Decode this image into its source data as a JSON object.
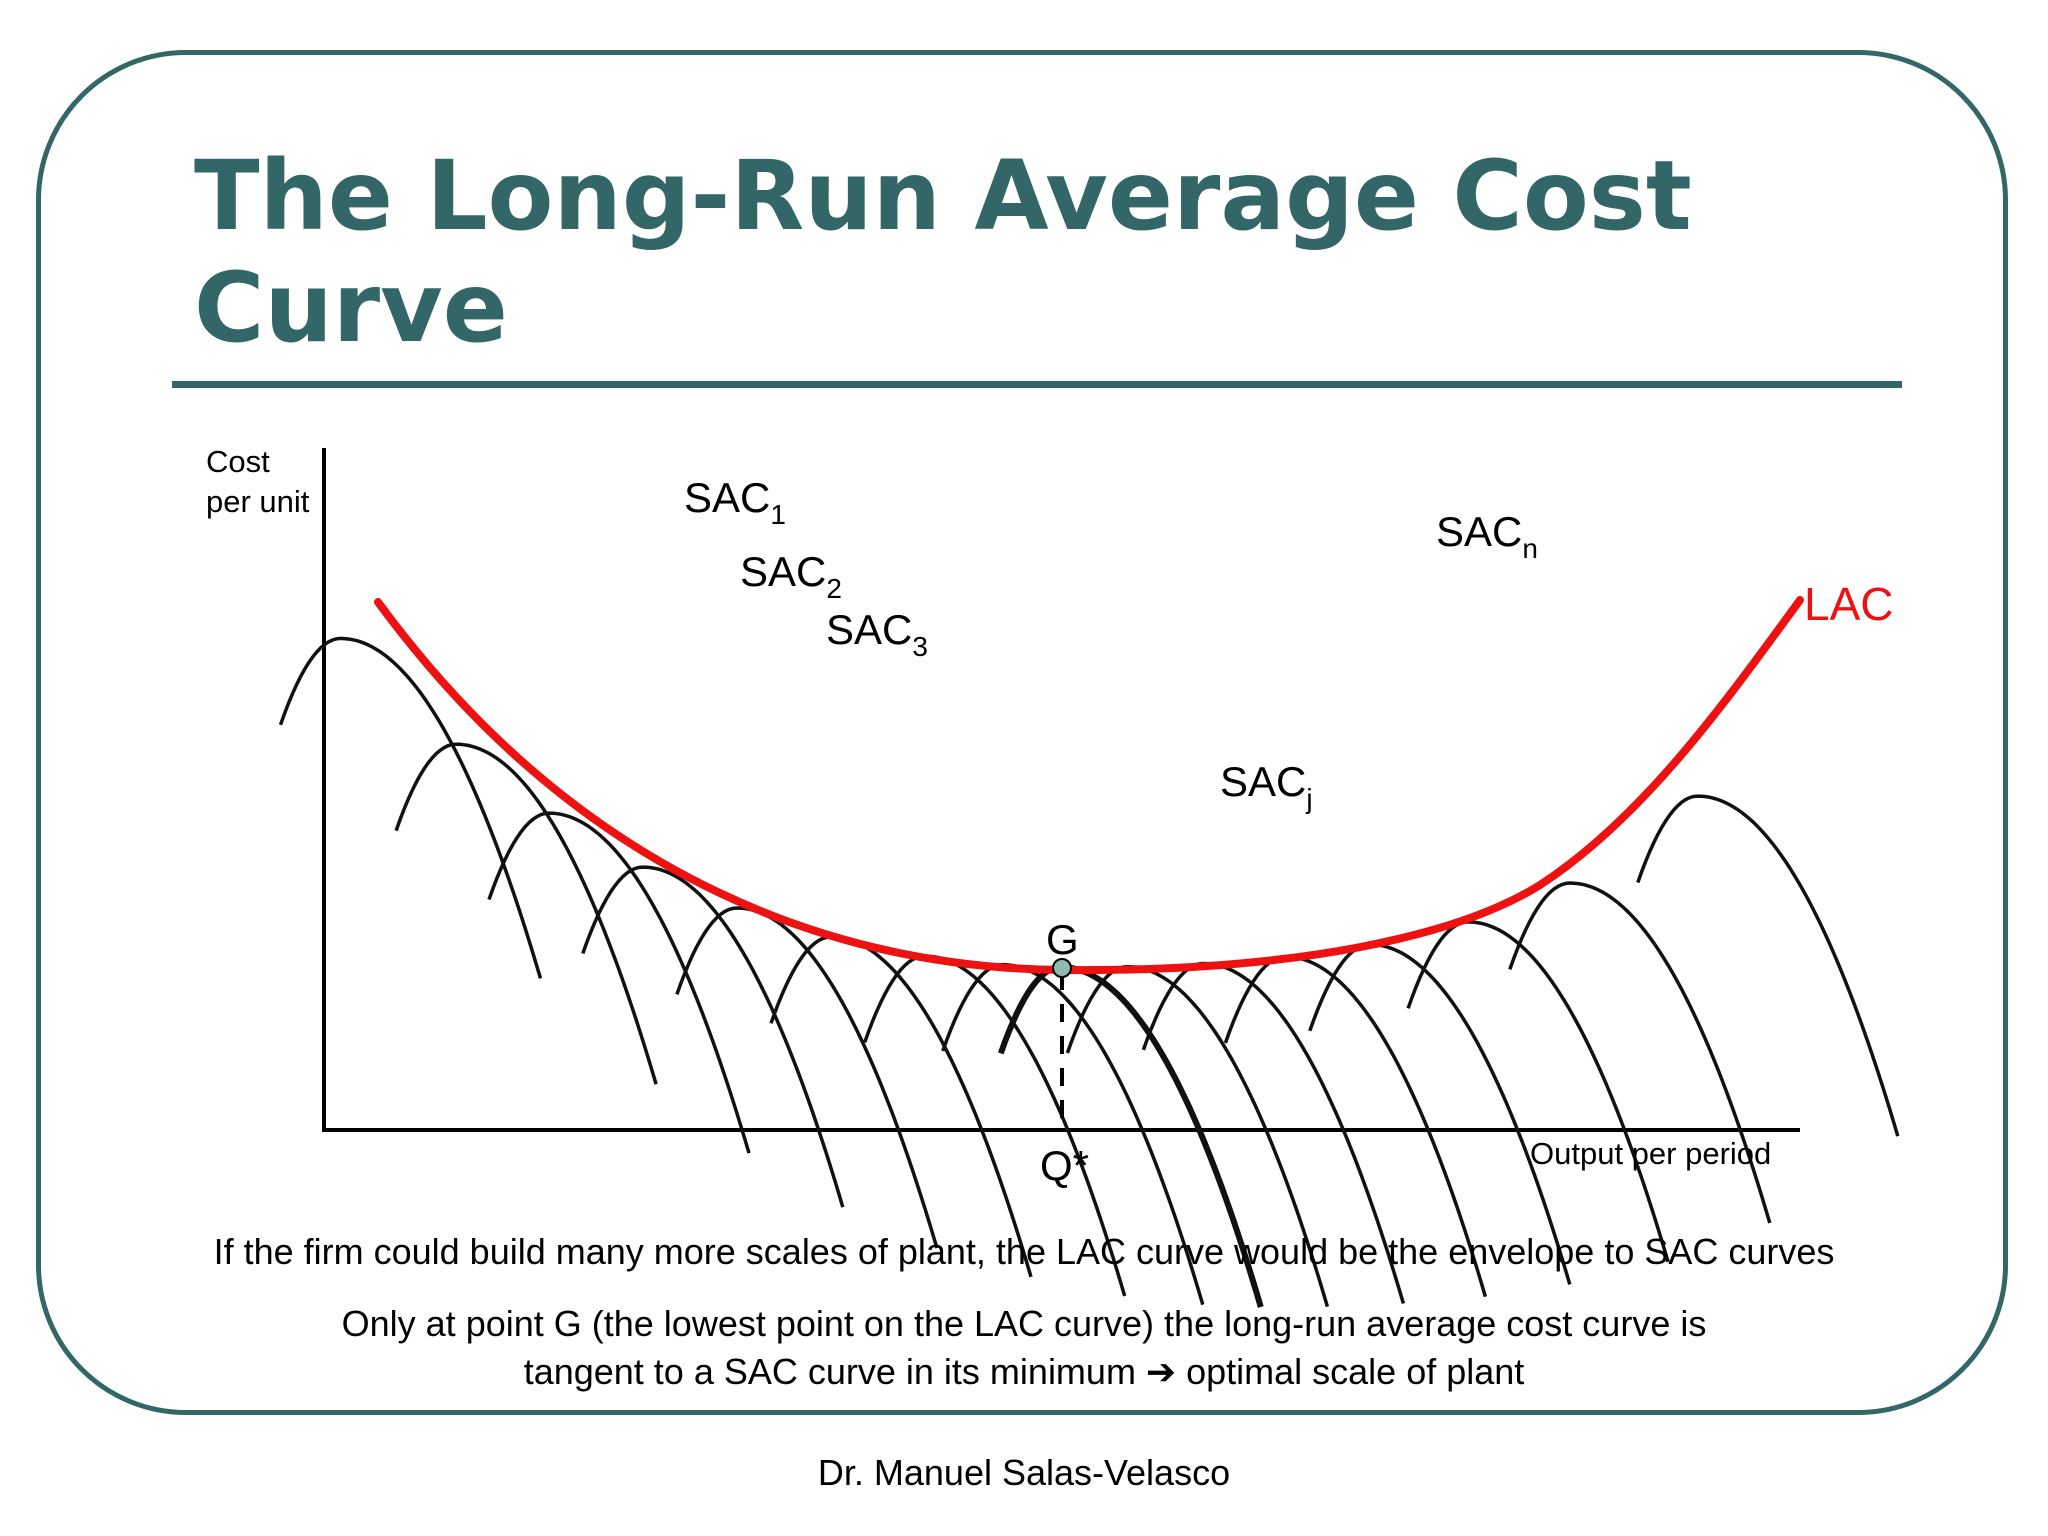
{
  "slide": {
    "title": "The Long-Run Average Cost Curve",
    "caption_1": "If the firm could build many more scales of plant, the LAC curve would be the envelope to SAC curves",
    "caption_2_line1": "Only at point G (the lowest point on the LAC curve) the long-run average cost curve is",
    "caption_2_line2": "tangent to a SAC curve in its minimum ➔ optimal scale of plant",
    "author": "Dr. Manuel Salas-Velasco"
  },
  "diagram": {
    "y_axis_label_line1": "Cost",
    "y_axis_label_line2": "per unit",
    "x_axis_label": "Output per period",
    "q_star_label": "Q*",
    "point_label": "G",
    "lac_label": "LAC",
    "sac_labels": [
      {
        "base": "SAC",
        "sub": "1"
      },
      {
        "base": "SAC",
        "sub": "2"
      },
      {
        "base": "SAC",
        "sub": "3"
      },
      {
        "base": "SAC",
        "sub": "j"
      },
      {
        "base": "SAC",
        "sub": "n"
      }
    ]
  },
  "colors": {
    "frame": "#336666",
    "title": "#336666",
    "lac_curve": "#ee1111",
    "sac_curves": "#111111",
    "point_g": "#8fbcb0"
  }
}
